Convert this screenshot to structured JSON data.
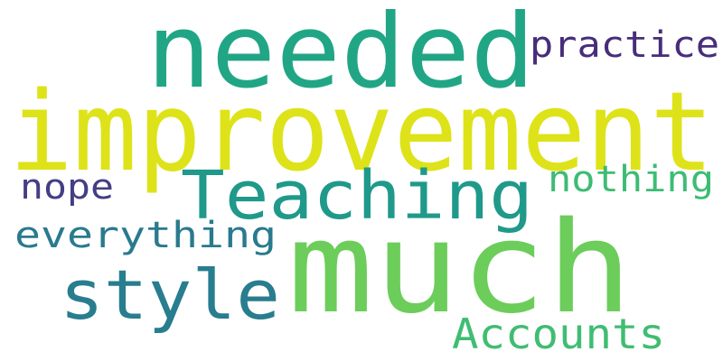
{
  "words": [
    {
      "text": "improvement",
      "weight": 1.0,
      "color": "#dde318"
    },
    {
      "text": "much",
      "weight": 0.96,
      "color": "#6ccd5a"
    },
    {
      "text": "needed",
      "weight": 0.69,
      "color": "#21a685"
    },
    {
      "text": "Teaching",
      "weight": 0.5,
      "color": "#1f998a"
    },
    {
      "text": "style",
      "weight": 0.5,
      "color": "#287d8e"
    },
    {
      "text": "practice",
      "weight": 0.31,
      "color": "#472d7b"
    },
    {
      "text": "nothing",
      "weight": 0.31,
      "color": "#3dbc74"
    },
    {
      "text": "everything",
      "weight": 0.31,
      "color": "#297a8e"
    },
    {
      "text": "Accounts",
      "weight": 0.34,
      "color": "#40bd72"
    },
    {
      "text": "nope",
      "weight": 0.29,
      "color": "#433e85"
    }
  ],
  "colors": {
    "background": "#ffffff"
  }
}
